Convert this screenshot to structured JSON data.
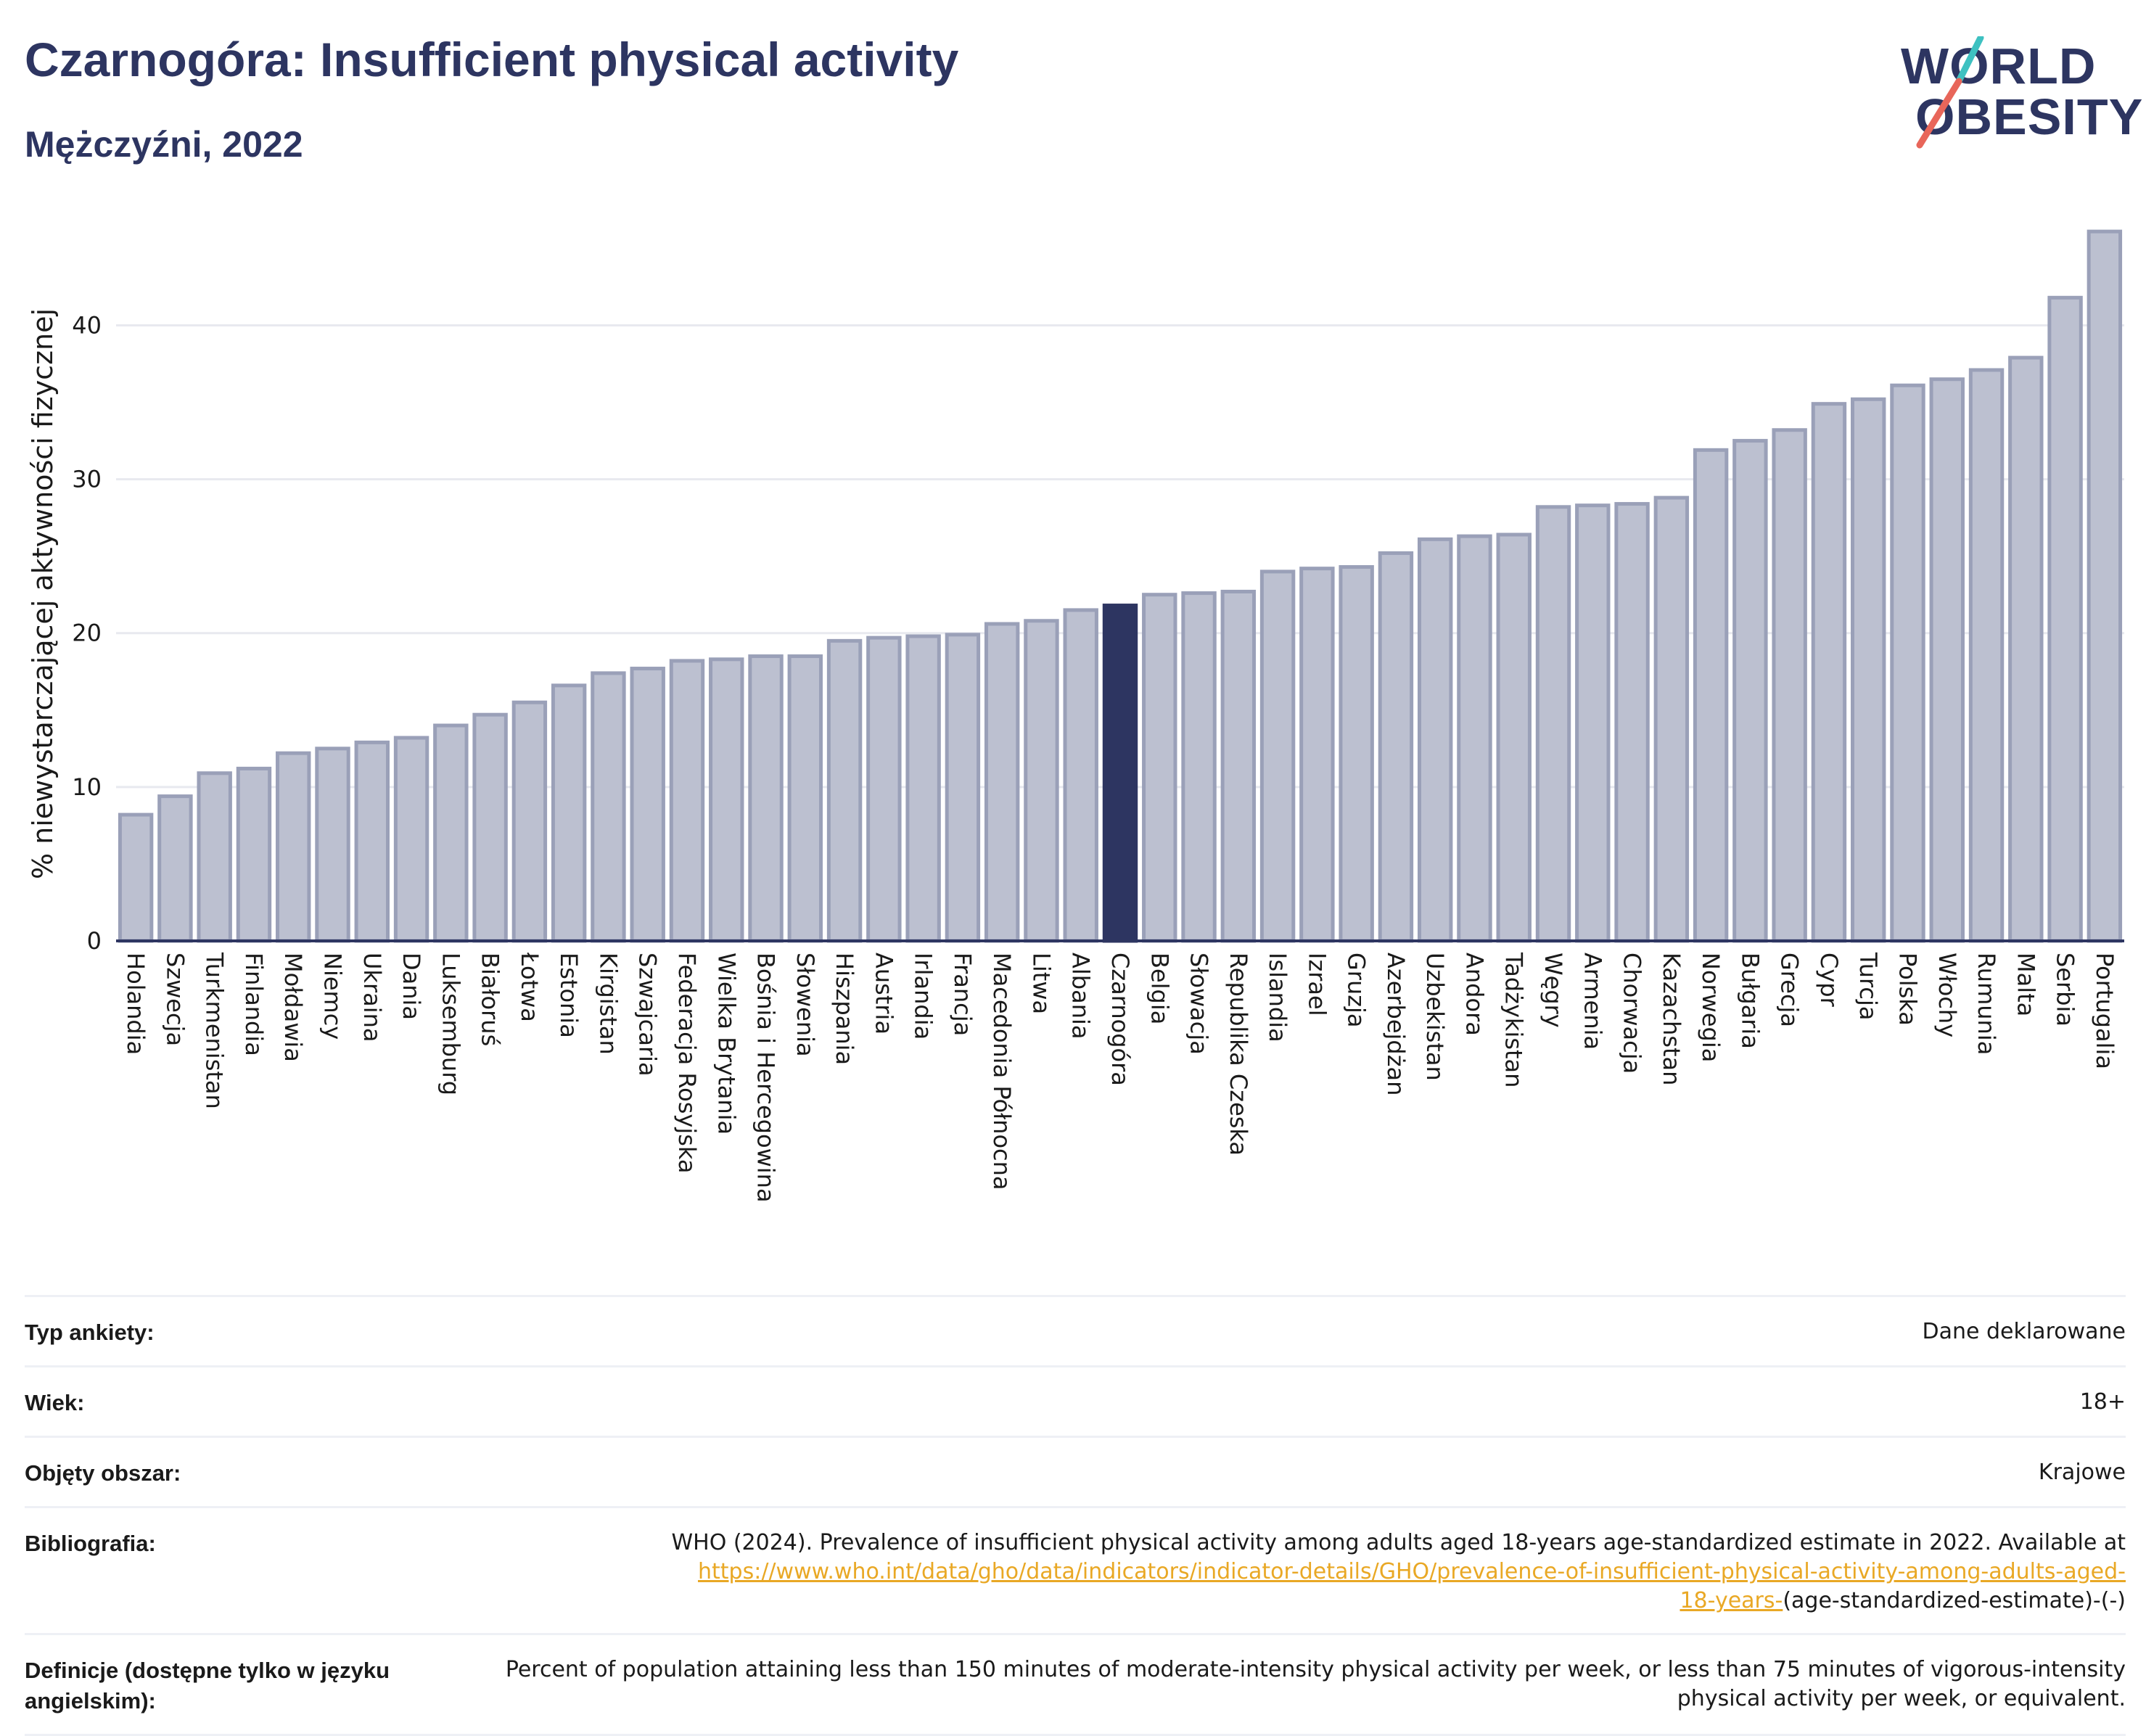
{
  "header": {
    "title": "Czarnogóra: Insufficient physical activity",
    "subtitle": "Mężczyźni, 2022"
  },
  "logo": {
    "line1": "WORLD",
    "line2": "OBESITY",
    "colors": {
      "text": "#2d3561",
      "slash_top": "#3ec1c1",
      "slash_bottom": "#e8665a"
    }
  },
  "colors": {
    "bar": "#bcc0d0",
    "bar_border": "#9aa0b8",
    "highlight": "#2d3561",
    "grid": "#e8e9ef",
    "axis": "#2d3561"
  },
  "chart_data": {
    "type": "bar",
    "title": "Czarnogóra: Insufficient physical activity",
    "subtitle": "Mężczyźni, 2022",
    "ylabel": "% niewystarczającej aktywności fizycznej",
    "xlabel": "",
    "ylim": [
      0,
      47
    ],
    "yticks": [
      0,
      10,
      20,
      30,
      40
    ],
    "grid": true,
    "highlight": "Czarnogóra",
    "categories": [
      "Holandia",
      "Szwecja",
      "Turkmenistan",
      "Finlandia",
      "Mołdawia",
      "Niemcy",
      "Ukraina",
      "Dania",
      "Luksemburg",
      "Białoruś",
      "Łotwa",
      "Estonia",
      "Kirgistan",
      "Szwajcaria",
      "Federacja Rosyjska",
      "Wielka Brytania",
      "Bośnia i Hercegowina",
      "Słowenia",
      "Hiszpania",
      "Austria",
      "Irlandia",
      "Francja",
      "Macedonia Północna",
      "Litwa",
      "Albania",
      "Czarnogóra",
      "Belgia",
      "Słowacja",
      "Republika Czeska",
      "Islandia",
      "Izrael",
      "Gruzja",
      "Azerbejdżan",
      "Uzbekistan",
      "Andora",
      "Tadżykistan",
      "Węgry",
      "Armenia",
      "Chorwacja",
      "Kazachstan",
      "Norwegia",
      "Bułgaria",
      "Grecja",
      "Cypr",
      "Turcja",
      "Polska",
      "Włochy",
      "Rumunia",
      "Malta",
      "Serbia",
      "Portugalia"
    ],
    "values": [
      8.2,
      9.4,
      10.9,
      11.2,
      12.2,
      12.5,
      12.9,
      13.2,
      14.0,
      14.7,
      15.5,
      16.6,
      17.4,
      17.7,
      18.2,
      18.3,
      18.5,
      18.5,
      19.5,
      19.7,
      19.8,
      19.9,
      20.6,
      20.8,
      21.5,
      21.8,
      22.5,
      22.6,
      22.7,
      24.0,
      24.2,
      24.3,
      25.2,
      26.1,
      26.3,
      26.4,
      28.2,
      28.3,
      28.4,
      28.8,
      31.9,
      32.5,
      33.2,
      34.9,
      35.2,
      36.1,
      36.5,
      37.1,
      37.9,
      41.8,
      46.1
    ]
  },
  "info": {
    "rows": [
      {
        "label": "Typ ankiety:",
        "value": "Dane deklarowane"
      },
      {
        "label": "Wiek:",
        "value": "18+"
      },
      {
        "label": "Objęty obszar:",
        "value": "Krajowe"
      }
    ],
    "bibliography": {
      "label": "Bibliografia:",
      "text": "WHO (2024). Prevalence of insufficient physical activity among adults aged 18-years age-standardized estimate in 2022. Available at",
      "link_line1": "https://www.who.int/data/gho/data/indicators/indicator-details/GHO/prevalence-of-insufficient-physical-activity-among-adults-aged-",
      "link_line2": "18-years-",
      "tail": "(age-standardized-estimate)-(-)"
    },
    "definition": {
      "label": "Definicje (dostępne tylko w języku angielskim):",
      "text": "Percent of population attaining less than 150 minutes of moderate-intensity physical activity per week, or less than 75 minutes of vigorous-intensity physical activity per week, or equivalent."
    }
  }
}
